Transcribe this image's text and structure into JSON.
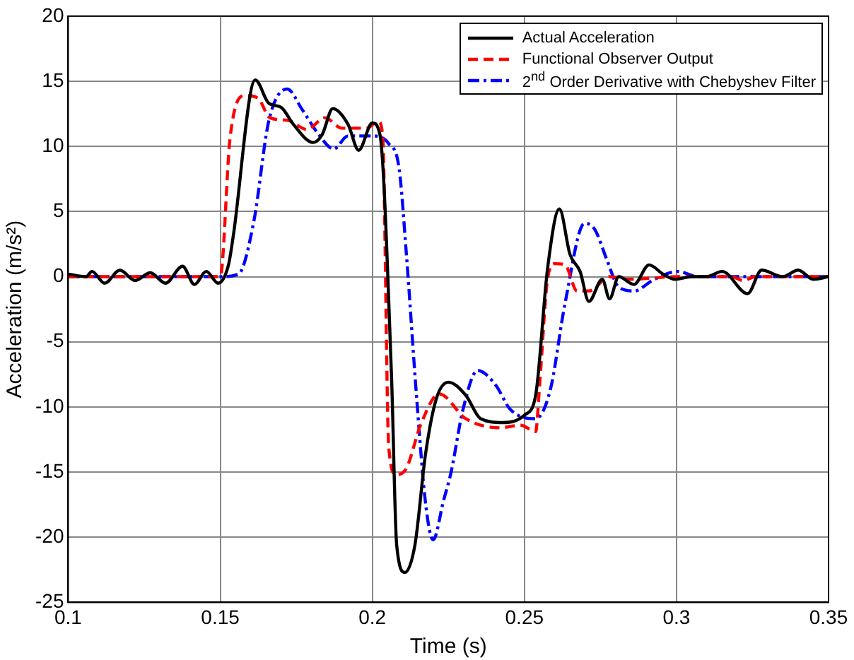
{
  "chart_data": {
    "type": "line",
    "xlabel": "Time (s)",
    "ylabel": "Acceleration (m/s²)",
    "xlim": [
      0.1,
      0.35
    ],
    "xticks": [
      0.1,
      0.15,
      0.2,
      0.25,
      0.3,
      0.35
    ],
    "ylim": [
      -25,
      20
    ],
    "yticks": [
      -25,
      -20,
      -15,
      -10,
      -5,
      0,
      5,
      10,
      15,
      20
    ],
    "grid": true,
    "legend": "top right",
    "marker": "none",
    "series": [
      {
        "name": "Actual Acceleration",
        "color": "#000000",
        "line_style": "solid",
        "x": [
          0.1,
          0.1059,
          0.1078,
          0.112,
          0.117,
          0.122,
          0.127,
          0.132,
          0.1376,
          0.1415,
          0.1454,
          0.1493,
          0.1527,
          0.1542,
          0.1615,
          0.166,
          0.17,
          0.174,
          0.1805,
          0.1835,
          0.187,
          0.192,
          0.1955,
          0.2,
          0.2025,
          0.2063,
          0.208,
          0.2107,
          0.214,
          0.2175,
          0.221,
          0.225,
          0.2307,
          0.2356,
          0.243,
          0.2502,
          0.2537,
          0.2576,
          0.2615,
          0.265,
          0.2683,
          0.2712,
          0.2756,
          0.278,
          0.281,
          0.286,
          0.291,
          0.2956,
          0.2995,
          0.305,
          0.31,
          0.315,
          0.3234,
          0.328,
          0.335,
          0.34,
          0.345,
          0.35
        ],
        "values": [
          0.2,
          0,
          0.4,
          -0.5,
          0.5,
          -0.3,
          0.3,
          -0.5,
          0.8,
          -0.6,
          0.4,
          -0.5,
          0.9,
          3,
          15.1,
          13.3,
          13,
          11.7,
          10.3,
          10.9,
          12.9,
          11.7,
          9.7,
          11.8,
          10.9,
          -7.6,
          -20.6,
          -22.7,
          -20.6,
          -13.6,
          -9.4,
          -8.1,
          -9.1,
          -10.9,
          -11.2,
          -10.6,
          -9.1,
          0.6,
          5.2,
          1.7,
          0.4,
          -1.9,
          -0.2,
          -1.7,
          0,
          -0.6,
          0.9,
          0.2,
          -0.2,
          0,
          0,
          0.4,
          -1.3,
          0.5,
          0,
          0.5,
          -0.2,
          0
        ]
      },
      {
        "name": "Functional Observer Output",
        "color": "#ff0000",
        "line_style": "dashed",
        "x": [
          0.1,
          0.15,
          0.1532,
          0.158,
          0.1624,
          0.1663,
          0.1722,
          0.1785,
          0.1844,
          0.19,
          0.198,
          0.202,
          0.2034,
          0.2054,
          0.2078,
          0.2112,
          0.216,
          0.222,
          0.2307,
          0.2419,
          0.2488,
          0.2537,
          0.255,
          0.2576,
          0.26,
          0.2634,
          0.2673,
          0.2712,
          0.278,
          0.2844,
          0.3,
          0.318,
          0.322,
          0.326,
          0.35
        ],
        "values": [
          0,
          0,
          10.6,
          13.9,
          13.7,
          12.2,
          12,
          11.3,
          12.2,
          11.4,
          11.4,
          11.9,
          10.8,
          -13.1,
          -15.2,
          -14.7,
          -11.3,
          -9,
          -10.9,
          -11.6,
          -11.4,
          -11.9,
          -8.3,
          -0.2,
          1,
          0.9,
          -1.1,
          -1.1,
          0,
          -0.2,
          0,
          0,
          -0.3,
          0,
          0
        ]
      },
      {
        "name": "2$^{nd}$ Order Derivative with Chebyshev Filter",
        "color": "#0000ff",
        "line_style": "dashdot",
        "x": [
          0.1,
          0.15,
          0.156,
          0.161,
          0.166,
          0.172,
          0.177,
          0.1824,
          0.1873,
          0.192,
          0.2,
          0.2054,
          0.2088,
          0.2112,
          0.2146,
          0.2176,
          0.22,
          0.2234,
          0.2259,
          0.2298,
          0.2346,
          0.2405,
          0.2454,
          0.2537,
          0.2585,
          0.2634,
          0.2698,
          0.2732,
          0.2771,
          0.281,
          0.286,
          0.2927,
          0.3005,
          0.307,
          0.35
        ],
        "values": [
          0,
          0,
          0.2,
          4.2,
          12,
          14.4,
          12.8,
          10.9,
          9.8,
          10.8,
          10.8,
          10.2,
          8.3,
          1.7,
          -9.4,
          -17.6,
          -20.2,
          -17.2,
          -15,
          -10.2,
          -7.2,
          -8.3,
          -10.2,
          -10.9,
          -8.7,
          -2,
          4.1,
          3.6,
          1.3,
          -0.8,
          -1.1,
          -0.2,
          0.4,
          0,
          0
        ]
      }
    ]
  }
}
